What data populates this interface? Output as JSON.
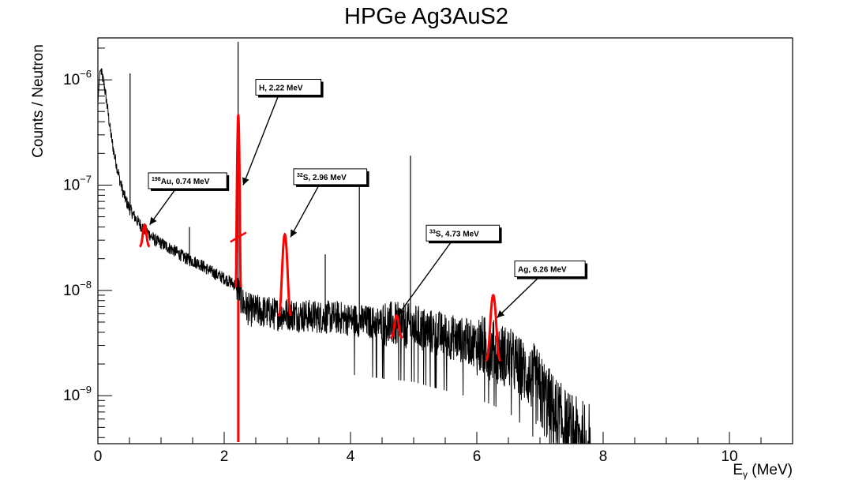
{
  "chart_data": {
    "type": "line",
    "title": "HPGe Ag3AuS2",
    "xlabel_main": "E",
    "xlabel_sub": "γ",
    "xlabel_unit": " (MeV)",
    "ylabel": "Counts / Neutron",
    "xlim": [
      0,
      11
    ],
    "ylim": [
      3.5e-10,
      2.5e-06
    ],
    "y_scale": "log",
    "grid": false,
    "x_ticks": [
      {
        "value": 0,
        "label": "0"
      },
      {
        "value": 2,
        "label": "2"
      },
      {
        "value": 4,
        "label": "4"
      },
      {
        "value": 6,
        "label": "6"
      },
      {
        "value": 8,
        "label": "8"
      },
      {
        "value": 10,
        "label": "10"
      }
    ],
    "y_ticks": [
      {
        "value": 1e-09,
        "base": "10",
        "exp": "−9"
      },
      {
        "value": 1e-08,
        "base": "10",
        "exp": "−8"
      },
      {
        "value": 1e-07,
        "base": "10",
        "exp": "−7"
      },
      {
        "value": 1e-06,
        "base": "10",
        "exp": "−6"
      }
    ],
    "spectrum": {
      "name": "",
      "color": "#000000",
      "x": [
        0.05,
        0.1,
        0.15,
        0.2,
        0.25,
        0.3,
        0.35,
        0.4,
        0.45,
        0.5,
        0.6,
        0.7,
        0.8,
        0.9,
        1.0,
        1.2,
        1.4,
        1.6,
        1.8,
        2.0,
        2.1,
        2.2,
        2.3,
        2.4,
        2.6,
        2.8,
        3.0,
        3.2,
        3.5,
        3.8,
        4.0,
        4.3,
        4.6,
        5.0,
        5.3,
        5.6,
        5.9,
        6.2,
        6.5,
        6.8,
        7.0,
        7.2,
        7.4,
        7.6,
        7.8
      ],
      "y": [
        1.2e-06,
        9e-07,
        5.5e-07,
        3.2e-07,
        2.1e-07,
        1.5e-07,
        1.1e-07,
        8.5e-08,
        7e-08,
        6e-08,
        4.8e-08,
        4e-08,
        3.5e-08,
        3e-08,
        2.8e-08,
        2.4e-08,
        2e-08,
        1.8e-08,
        1.5e-08,
        1.3e-08,
        1.2e-08,
        1.1e-08,
        7.5e-09,
        6.5e-09,
        6.3e-09,
        6e-09,
        6e-09,
        5.8e-09,
        5.6e-09,
        5.5e-09,
        5.3e-09,
        5e-09,
        4.8e-09,
        4.5e-09,
        4e-09,
        3.6e-09,
        3.2e-09,
        2.8e-09,
        2.3e-09,
        1.6e-09,
        1.1e-09,
        7e-10,
        5e-10,
        4e-10,
        3.6e-10
      ]
    },
    "spikes": [
      {
        "x": 0.51,
        "y": 1.15e-06
      },
      {
        "x": 2.22,
        "y": 2.3e-06
      },
      {
        "x": 4.14,
        "y": 1.3e-07
      },
      {
        "x": 4.95,
        "y": 1.9e-07
      },
      {
        "x": 1.45,
        "y": 4e-08
      },
      {
        "x": 3.6,
        "y": 2.2e-08
      }
    ],
    "fits": [
      {
        "center": 0.74,
        "base": 2.6e-08,
        "peak": 4.2e-08,
        "sigma": 0.025
      },
      {
        "center": 2.223,
        "base": 8e-09,
        "peak": 4.6e-07,
        "sigma": 0.012
      },
      {
        "center": 2.96,
        "base": 5.5e-09,
        "peak": 3.4e-08,
        "sigma": 0.03
      },
      {
        "center": 4.73,
        "base": 3.5e-09,
        "peak": 5.8e-09,
        "sigma": 0.03
      },
      {
        "center": 6.26,
        "base": 2.1e-09,
        "peak": 9e-09,
        "sigma": 0.035
      }
    ],
    "fit_color": "#ff0000",
    "annotations": [
      {
        "sup": "198",
        "text": "Au, 0.74 MeV",
        "box_x": 0.8,
        "box_y": 1.1e-07,
        "arrow_x": 0.82,
        "arrow_y": 4.2e-08
      },
      {
        "sup": "",
        "text": "H, 2.22 MeV",
        "box_x": 2.5,
        "box_y": 8.5e-07,
        "arrow_x": 2.3,
        "arrow_y": 1e-07
      },
      {
        "sup": "32",
        "text": "S, 2.96 MeV",
        "box_x": 3.1,
        "box_y": 1.2e-07,
        "arrow_x": 3.05,
        "arrow_y": 3.2e-08
      },
      {
        "sup": "33",
        "text": "S, 4.73 MeV",
        "box_x": 5.2,
        "box_y": 3.5e-08,
        "arrow_x": 4.75,
        "arrow_y": 5.8e-09
      },
      {
        "sup": "",
        "text": "Ag, 6.26 MeV",
        "box_x": 6.6,
        "box_y": 1.6e-08,
        "arrow_x": 6.32,
        "arrow_y": 5.5e-09
      }
    ]
  }
}
